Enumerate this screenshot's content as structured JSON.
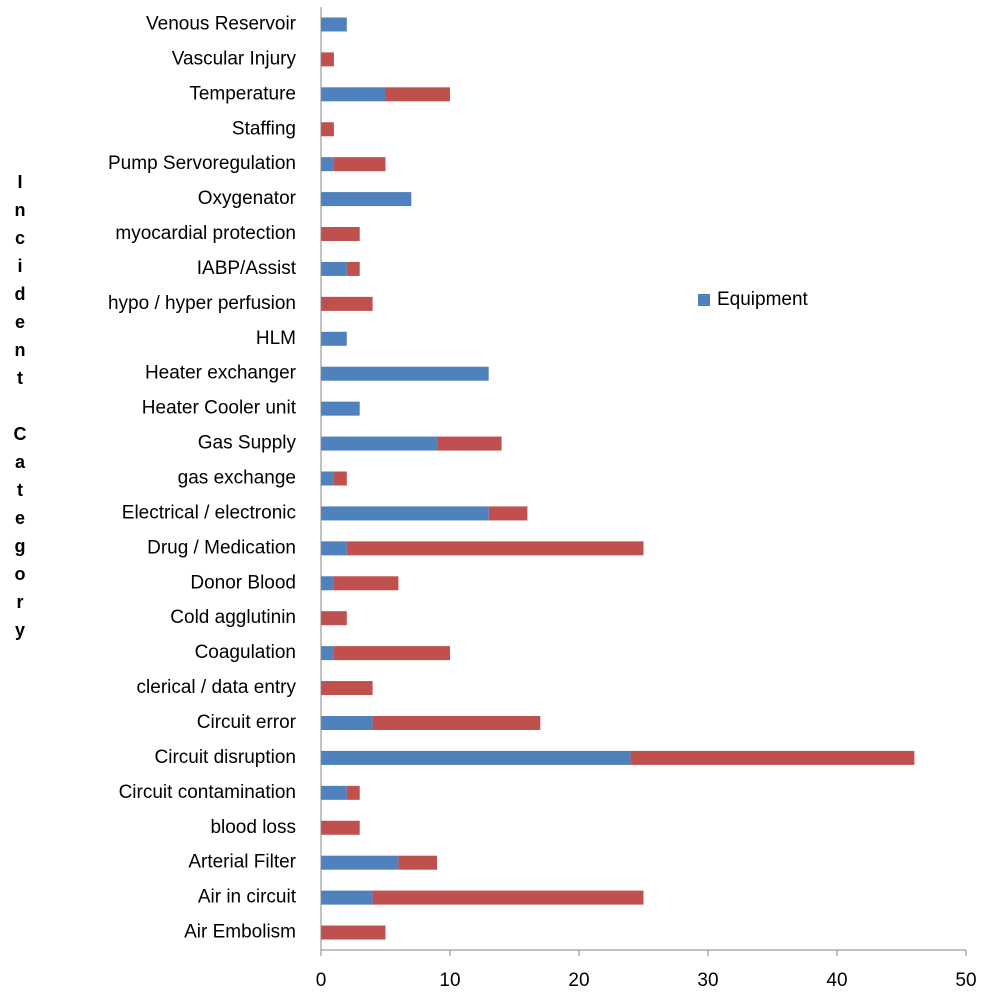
{
  "chart_data": {
    "type": "stacked-bar-horizontal",
    "ylabel": "Incident Category",
    "categories": [
      "Air Embolism",
      "Air in circuit",
      "Arterial Filter",
      "blood loss",
      "Circuit contamination",
      "Circuit disruption",
      "Circuit error",
      "clerical / data entry",
      "Coagulation",
      "Cold agglutinin",
      "Donor Blood",
      "Drug / Medication",
      "Electrical / electronic",
      "gas exchange",
      "Gas Supply",
      "Heater Cooler unit",
      "Heater exchanger",
      "HLM",
      "hypo / hyper perfusion",
      "IABP/Assist",
      "myocardial protection",
      "Oxygenator",
      "Pump Servoregulation",
      "Staffing",
      "Temperature",
      "Vascular Injury",
      "Venous Reservoir"
    ],
    "series": [
      {
        "name": "Equipment",
        "color": "#4f81bd",
        "values": [
          0,
          4,
          6,
          0,
          2,
          24,
          4,
          0,
          1,
          0,
          1,
          2,
          13,
          1,
          9,
          3,
          13,
          2,
          0,
          2,
          0,
          7,
          1,
          0,
          5,
          0,
          2
        ]
      },
      {
        "color": "#c0504d",
        "values": [
          5,
          21,
          3,
          3,
          1,
          22,
          13,
          4,
          9,
          2,
          5,
          23,
          3,
          1,
          5,
          0,
          0,
          0,
          4,
          1,
          3,
          0,
          4,
          1,
          5,
          1,
          0
        ]
      }
    ],
    "xlim": [
      0,
      50
    ],
    "xticks": [
      0,
      10,
      20,
      30,
      40,
      50
    ],
    "legend": "right"
  }
}
